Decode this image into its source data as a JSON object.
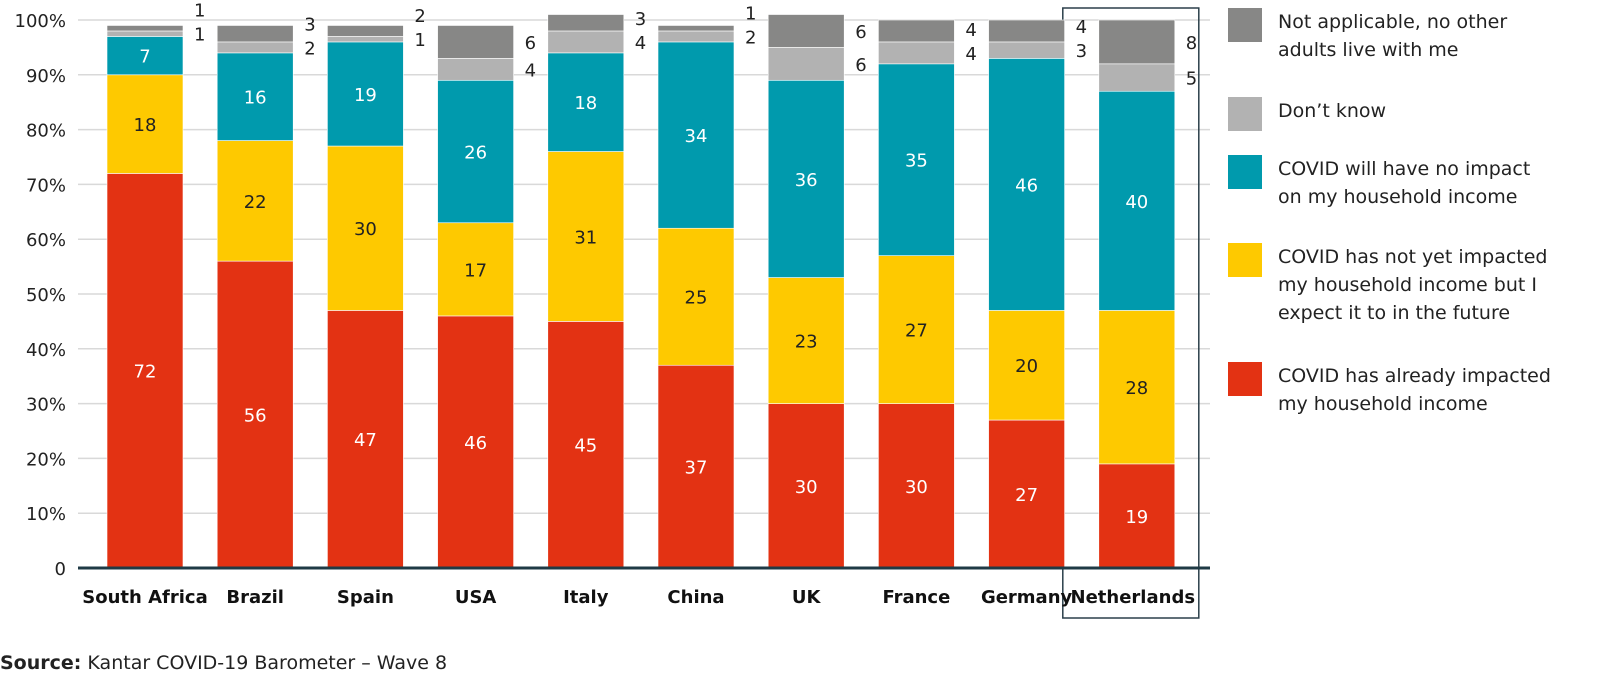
{
  "chart_data": {
    "type": "bar",
    "stacked": true,
    "categories": [
      "South Africa",
      "Brazil",
      "Spain",
      "USA",
      "Italy",
      "China",
      "UK",
      "France",
      "Germany",
      "Netherlands"
    ],
    "highlighted_category": "Netherlands",
    "series": [
      {
        "name": "COVID has already impacted\nmy household income",
        "color": "#e33213",
        "values": [
          72,
          56,
          47,
          46,
          45,
          37,
          30,
          30,
          27,
          19
        ]
      },
      {
        "name": "COVID has not yet impacted\nmy household income but I\nexpect it to in the future",
        "color": "#fec900",
        "values": [
          18,
          22,
          30,
          17,
          31,
          25,
          23,
          27,
          20,
          28
        ]
      },
      {
        "name": "COVID will have no impact\non my household income",
        "color": "#009aad",
        "values": [
          7,
          16,
          19,
          26,
          18,
          34,
          36,
          35,
          46,
          40
        ]
      },
      {
        "name": "Don’t know",
        "color": "#b2b2b2",
        "values": [
          1,
          2,
          1,
          4,
          4,
          2,
          6,
          4,
          3,
          5
        ]
      },
      {
        "name": "Not applicable, no other\n adults live with me",
        "color": "#878786",
        "values": [
          1,
          3,
          2,
          6,
          3,
          1,
          6,
          4,
          4,
          8
        ]
      }
    ],
    "yticks": [
      "0",
      "10%",
      "20%",
      "30%",
      "40%",
      "50%",
      "60%",
      "70%",
      "80%",
      "90%",
      "100%"
    ],
    "ylim": [
      0,
      100
    ],
    "grid": true,
    "legend_position": "right"
  },
  "source": {
    "label": "Source:",
    "text": " Kantar COVID-19 Barometer – Wave 8"
  }
}
